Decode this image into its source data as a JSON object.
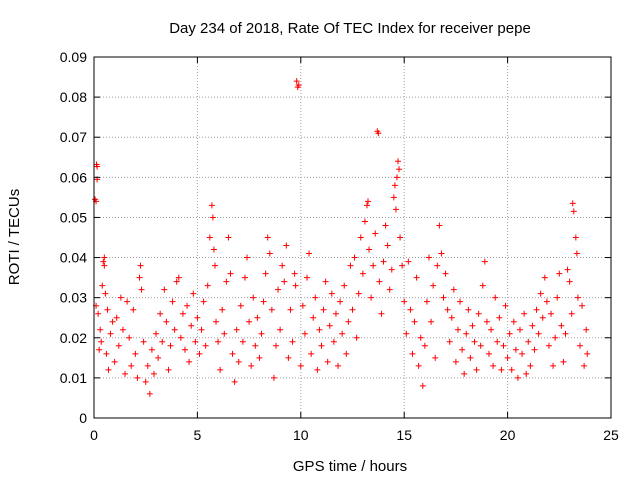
{
  "chart_data": {
    "type": "scatter",
    "title": "Day 234 of 2018, Rate Of TEC Index for receiver pepe",
    "xlabel": "GPS time / hours",
    "ylabel": "ROTI / TECUs",
    "xlim": [
      0,
      25
    ],
    "ylim": [
      0,
      0.09
    ],
    "xticks": [
      0,
      5,
      10,
      15,
      20,
      25
    ],
    "xtick_labels": [
      "0",
      "5",
      "10",
      "15",
      "20",
      "25"
    ],
    "yticks": [
      0,
      0.01,
      0.02,
      0.03,
      0.04,
      0.05,
      0.06,
      0.07,
      0.08,
      0.09
    ],
    "ytick_labels": [
      "0",
      "0.01",
      "0.02",
      "0.03",
      "0.04",
      "0.05",
      "0.06",
      "0.07",
      "0.08",
      "0.09"
    ],
    "grid": true,
    "marker": "+",
    "color": "#ff0000",
    "series": [
      {
        "name": "ROTI",
        "points": [
          [
            0.05,
            0.0545
          ],
          [
            0.1,
            0.054
          ],
          [
            0.12,
            0.0632
          ],
          [
            0.15,
            0.0595
          ],
          [
            0.15,
            0.0627
          ],
          [
            0.1,
            0.028
          ],
          [
            0.2,
            0.026
          ],
          [
            0.25,
            0.017
          ],
          [
            0.3,
            0.022
          ],
          [
            0.35,
            0.019
          ],
          [
            0.4,
            0.033
          ],
          [
            0.45,
            0.039
          ],
          [
            0.5,
            0.04
          ],
          [
            0.5,
            0.038
          ],
          [
            0.55,
            0.031
          ],
          [
            0.6,
            0.016
          ],
          [
            0.65,
            0.027
          ],
          [
            0.7,
            0.012
          ],
          [
            0.8,
            0.021
          ],
          [
            0.9,
            0.024
          ],
          [
            1.0,
            0.014
          ],
          [
            1.1,
            0.025
          ],
          [
            1.2,
            0.018
          ],
          [
            1.3,
            0.03
          ],
          [
            1.4,
            0.022
          ],
          [
            1.5,
            0.011
          ],
          [
            1.6,
            0.029
          ],
          [
            1.7,
            0.02
          ],
          [
            1.8,
            0.013
          ],
          [
            1.9,
            0.027
          ],
          [
            2.0,
            0.016
          ],
          [
            2.1,
            0.01
          ],
          [
            2.2,
            0.035
          ],
          [
            2.25,
            0.038
          ],
          [
            2.3,
            0.032
          ],
          [
            2.4,
            0.019
          ],
          [
            2.5,
            0.009
          ],
          [
            2.6,
            0.013
          ],
          [
            2.7,
            0.006
          ],
          [
            2.8,
            0.017
          ],
          [
            2.9,
            0.011
          ],
          [
            3.0,
            0.021
          ],
          [
            3.1,
            0.015
          ],
          [
            3.2,
            0.026
          ],
          [
            3.3,
            0.019
          ],
          [
            3.4,
            0.032
          ],
          [
            3.5,
            0.024
          ],
          [
            3.6,
            0.012
          ],
          [
            3.7,
            0.018
          ],
          [
            3.8,
            0.029
          ],
          [
            3.9,
            0.022
          ],
          [
            4.0,
            0.034
          ],
          [
            4.1,
            0.035
          ],
          [
            4.2,
            0.02
          ],
          [
            4.3,
            0.026
          ],
          [
            4.4,
            0.017
          ],
          [
            4.5,
            0.028
          ],
          [
            4.6,
            0.014
          ],
          [
            4.7,
            0.023
          ],
          [
            4.8,
            0.031
          ],
          [
            4.9,
            0.019
          ],
          [
            5.0,
            0.025
          ],
          [
            5.1,
            0.016
          ],
          [
            5.2,
            0.022
          ],
          [
            5.3,
            0.029
          ],
          [
            5.4,
            0.018
          ],
          [
            5.5,
            0.033
          ],
          [
            5.6,
            0.045
          ],
          [
            5.7,
            0.053
          ],
          [
            5.75,
            0.05
          ],
          [
            5.8,
            0.042
          ],
          [
            5.85,
            0.038
          ],
          [
            5.9,
            0.024
          ],
          [
            6.0,
            0.019
          ],
          [
            6.1,
            0.012
          ],
          [
            6.2,
            0.027
          ],
          [
            6.3,
            0.021
          ],
          [
            6.4,
            0.034
          ],
          [
            6.5,
            0.045
          ],
          [
            6.6,
            0.036
          ],
          [
            6.7,
            0.016
          ],
          [
            6.8,
            0.009
          ],
          [
            6.9,
            0.022
          ],
          [
            7.0,
            0.014
          ],
          [
            7.1,
            0.028
          ],
          [
            7.2,
            0.019
          ],
          [
            7.3,
            0.035
          ],
          [
            7.4,
            0.04
          ],
          [
            7.5,
            0.024
          ],
          [
            7.6,
            0.013
          ],
          [
            7.7,
            0.03
          ],
          [
            7.8,
            0.018
          ],
          [
            7.9,
            0.025
          ],
          [
            8.0,
            0.015
          ],
          [
            8.1,
            0.021
          ],
          [
            8.2,
            0.029
          ],
          [
            8.3,
            0.036
          ],
          [
            8.4,
            0.045
          ],
          [
            8.5,
            0.041
          ],
          [
            8.6,
            0.027
          ],
          [
            8.7,
            0.01
          ],
          [
            8.8,
            0.018
          ],
          [
            8.9,
            0.032
          ],
          [
            9.0,
            0.022
          ],
          [
            9.1,
            0.038
          ],
          [
            9.2,
            0.034
          ],
          [
            9.3,
            0.043
          ],
          [
            9.4,
            0.015
          ],
          [
            9.5,
            0.027
          ],
          [
            9.6,
            0.019
          ],
          [
            9.7,
            0.036
          ],
          [
            9.75,
            0.033
          ],
          [
            9.8,
            0.084
          ],
          [
            9.85,
            0.0825
          ],
          [
            9.9,
            0.083
          ],
          [
            10.0,
            0.013
          ],
          [
            10.1,
            0.028
          ],
          [
            10.2,
            0.021
          ],
          [
            10.3,
            0.035
          ],
          [
            10.4,
            0.041
          ],
          [
            10.5,
            0.016
          ],
          [
            10.6,
            0.025
          ],
          [
            10.7,
            0.03
          ],
          [
            10.8,
            0.012
          ],
          [
            10.9,
            0.022
          ],
          [
            11.0,
            0.018
          ],
          [
            11.1,
            0.027
          ],
          [
            11.2,
            0.034
          ],
          [
            11.3,
            0.014
          ],
          [
            11.4,
            0.023
          ],
          [
            11.5,
            0.031
          ],
          [
            11.6,
            0.019
          ],
          [
            11.7,
            0.026
          ],
          [
            11.8,
            0.013
          ],
          [
            11.9,
            0.029
          ],
          [
            12.0,
            0.021
          ],
          [
            12.1,
            0.033
          ],
          [
            12.2,
            0.016
          ],
          [
            12.3,
            0.024
          ],
          [
            12.4,
            0.038
          ],
          [
            12.5,
            0.027
          ],
          [
            12.6,
            0.04
          ],
          [
            12.7,
            0.02
          ],
          [
            12.8,
            0.031
          ],
          [
            12.9,
            0.045
          ],
          [
            13.0,
            0.036
          ],
          [
            13.1,
            0.049
          ],
          [
            13.2,
            0.053
          ],
          [
            13.25,
            0.054
          ],
          [
            13.3,
            0.042
          ],
          [
            13.4,
            0.03
          ],
          [
            13.5,
            0.038
          ],
          [
            13.6,
            0.046
          ],
          [
            13.7,
            0.0715
          ],
          [
            13.75,
            0.071
          ],
          [
            13.8,
            0.034
          ],
          [
            13.9,
            0.026
          ],
          [
            14.0,
            0.039
          ],
          [
            14.1,
            0.048
          ],
          [
            14.2,
            0.043
          ],
          [
            14.3,
            0.032
          ],
          [
            14.4,
            0.037
          ],
          [
            14.5,
            0.055
          ],
          [
            14.55,
            0.058
          ],
          [
            14.6,
            0.052
          ],
          [
            14.65,
            0.06
          ],
          [
            14.7,
            0.064
          ],
          [
            14.75,
            0.062
          ],
          [
            14.8,
            0.045
          ],
          [
            14.9,
            0.038
          ],
          [
            15.0,
            0.029
          ],
          [
            15.1,
            0.021
          ],
          [
            15.2,
            0.039
          ],
          [
            15.3,
            0.027
          ],
          [
            15.4,
            0.016
          ],
          [
            15.5,
            0.024
          ],
          [
            15.6,
            0.035
          ],
          [
            15.7,
            0.013
          ],
          [
            15.8,
            0.02
          ],
          [
            15.9,
            0.008
          ],
          [
            16.0,
            0.018
          ],
          [
            16.1,
            0.029
          ],
          [
            16.2,
            0.04
          ],
          [
            16.3,
            0.024
          ],
          [
            16.4,
            0.033
          ],
          [
            16.5,
            0.015
          ],
          [
            16.6,
            0.038
          ],
          [
            16.7,
            0.048
          ],
          [
            16.8,
            0.041
          ],
          [
            16.9,
            0.03
          ],
          [
            17.0,
            0.036
          ],
          [
            17.1,
            0.027
          ],
          [
            17.2,
            0.019
          ],
          [
            17.3,
            0.025
          ],
          [
            17.4,
            0.032
          ],
          [
            17.5,
            0.014
          ],
          [
            17.6,
            0.022
          ],
          [
            17.7,
            0.029
          ],
          [
            17.8,
            0.017
          ],
          [
            17.9,
            0.011
          ],
          [
            18.0,
            0.021
          ],
          [
            18.1,
            0.027
          ],
          [
            18.2,
            0.015
          ],
          [
            18.3,
            0.023
          ],
          [
            18.4,
            0.019
          ],
          [
            18.5,
            0.012
          ],
          [
            18.6,
            0.026
          ],
          [
            18.7,
            0.018
          ],
          [
            18.8,
            0.033
          ],
          [
            18.9,
            0.039
          ],
          [
            19.0,
            0.024
          ],
          [
            19.1,
            0.016
          ],
          [
            19.2,
            0.022
          ],
          [
            19.3,
            0.013
          ],
          [
            19.4,
            0.03
          ],
          [
            19.5,
            0.019
          ],
          [
            19.6,
            0.025
          ],
          [
            19.7,
            0.012
          ],
          [
            19.8,
            0.018
          ],
          [
            19.9,
            0.028
          ],
          [
            20.0,
            0.015
          ],
          [
            20.1,
            0.021
          ],
          [
            20.2,
            0.012
          ],
          [
            20.3,
            0.024
          ],
          [
            20.4,
            0.017
          ],
          [
            20.5,
            0.01
          ],
          [
            20.6,
            0.022
          ],
          [
            20.7,
            0.016
          ],
          [
            20.8,
            0.026
          ],
          [
            20.9,
            0.011
          ],
          [
            21.0,
            0.019
          ],
          [
            21.1,
            0.013
          ],
          [
            21.2,
            0.023
          ],
          [
            21.3,
            0.017
          ],
          [
            21.4,
            0.027
          ],
          [
            21.5,
            0.021
          ],
          [
            21.6,
            0.031
          ],
          [
            21.7,
            0.025
          ],
          [
            21.8,
            0.035
          ],
          [
            21.9,
            0.029
          ],
          [
            22.0,
            0.018
          ],
          [
            22.1,
            0.026
          ],
          [
            22.2,
            0.013
          ],
          [
            22.3,
            0.02
          ],
          [
            22.4,
            0.03
          ],
          [
            22.5,
            0.036
          ],
          [
            22.6,
            0.023
          ],
          [
            22.7,
            0.014
          ],
          [
            22.8,
            0.021
          ],
          [
            22.9,
            0.037
          ],
          [
            23.0,
            0.034
          ],
          [
            23.1,
            0.026
          ],
          [
            23.15,
            0.0535
          ],
          [
            23.2,
            0.0515
          ],
          [
            23.3,
            0.045
          ],
          [
            23.35,
            0.041
          ],
          [
            23.4,
            0.03
          ],
          [
            23.5,
            0.018
          ],
          [
            23.6,
            0.028
          ],
          [
            23.7,
            0.013
          ],
          [
            23.8,
            0.022
          ],
          [
            23.85,
            0.016
          ]
        ]
      }
    ]
  }
}
